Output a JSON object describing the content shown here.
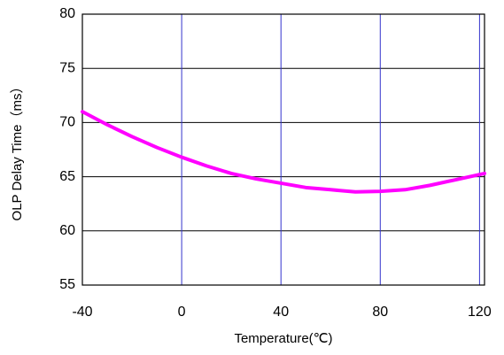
{
  "chart_data": {
    "type": "line",
    "x_label": "Temperature(℃)",
    "y_label": "OLP Delay Time（ms）",
    "x": [
      -40,
      -30,
      -20,
      -10,
      0,
      10,
      20,
      30,
      40,
      50,
      60,
      70,
      80,
      90,
      100,
      110,
      122
    ],
    "series": [
      {
        "name": "OLP Delay Time",
        "color": "#ff00ff",
        "values": [
          71.0,
          69.8,
          68.7,
          67.7,
          66.8,
          66.0,
          65.3,
          64.8,
          64.4,
          64.0,
          63.8,
          63.6,
          63.65,
          63.8,
          64.2,
          64.7,
          65.3
        ]
      }
    ],
    "xlim": [
      -40,
      122
    ],
    "xticks": [
      -40,
      0,
      40,
      80,
      120
    ],
    "ylim": [
      55,
      80
    ],
    "yticks": [
      55,
      60,
      65,
      70,
      75,
      80
    ],
    "grid": true
  }
}
